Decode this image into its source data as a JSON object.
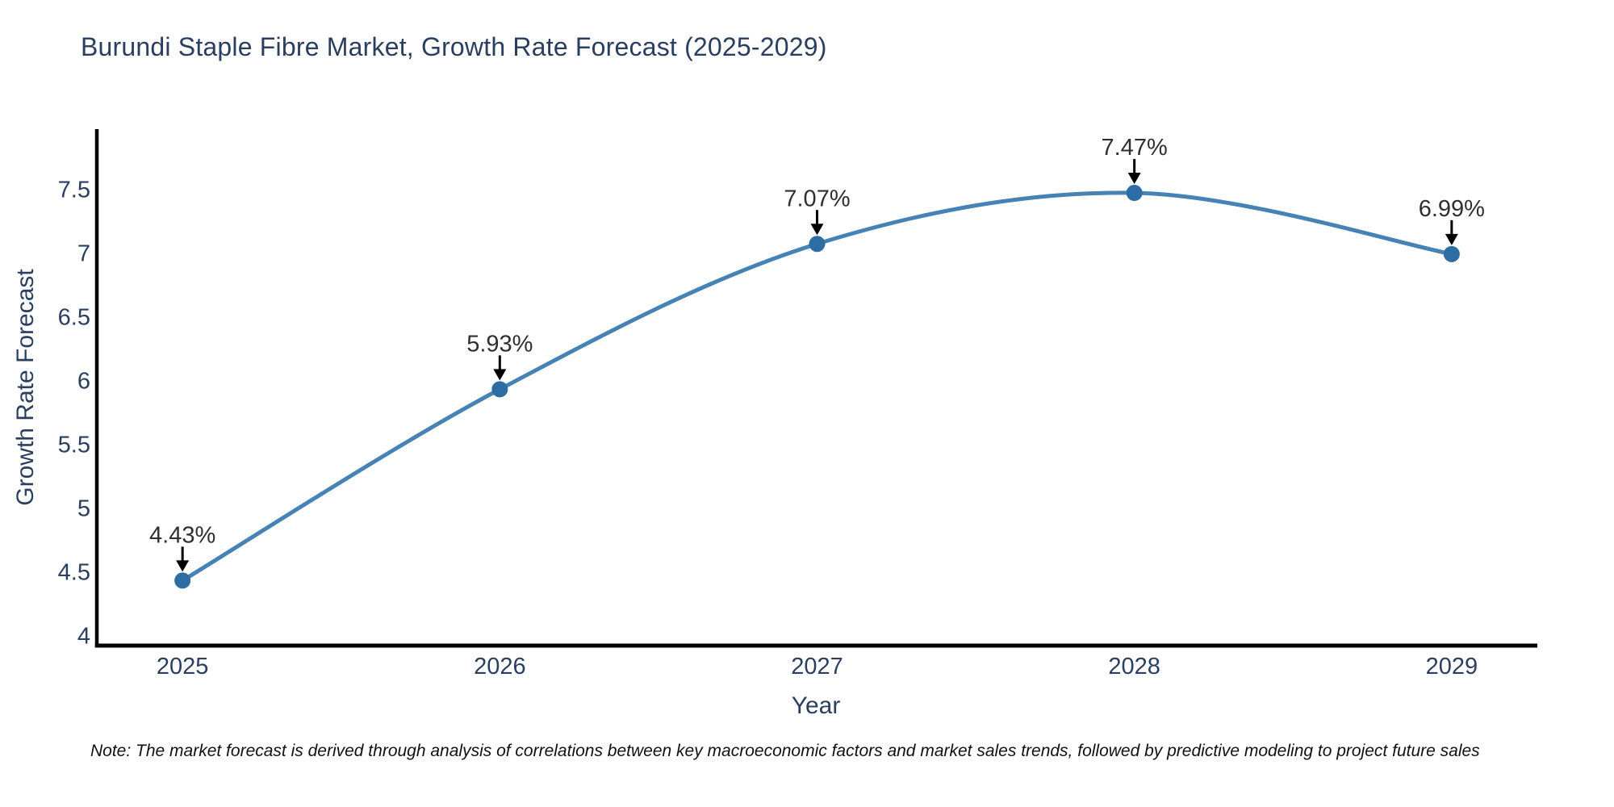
{
  "title": "Burundi Staple Fibre Market, Growth Rate Forecast (2025-2029)",
  "note": "Note: The market forecast is derived through analysis of correlations between key macroeconomic factors and market sales trends, followed by predictive modeling to project future sales",
  "chart_data": {
    "type": "line",
    "title": "Burundi Staple Fibre Market, Growth Rate Forecast (2025-2029)",
    "xlabel": "Year",
    "ylabel": "Growth Rate Forecast",
    "x": [
      2025,
      2026,
      2027,
      2028,
      2029
    ],
    "values": [
      4.43,
      5.93,
      7.07,
      7.47,
      6.99
    ],
    "point_labels": [
      "4.43%",
      "5.93%",
      "7.07%",
      "7.47%",
      "6.99%"
    ],
    "xticks": [
      2025,
      2026,
      2027,
      2028,
      2029
    ],
    "yticks": [
      4,
      4.5,
      5,
      5.5,
      6,
      6.5,
      7,
      7.5
    ],
    "xlim": [
      2024.73,
      2029.27
    ],
    "ylim": [
      3.92,
      7.97
    ],
    "grid": false,
    "legend": "none",
    "line_shape": "spline",
    "annotation_arrows": true,
    "colors": {
      "line": "#4682b4",
      "marker": "#2e6da4",
      "arrow": "#000000",
      "axis": "#000000",
      "axis_text": "#2a3f5f",
      "annotation_text": "#2f2f2f",
      "background": "#ffffff"
    }
  }
}
